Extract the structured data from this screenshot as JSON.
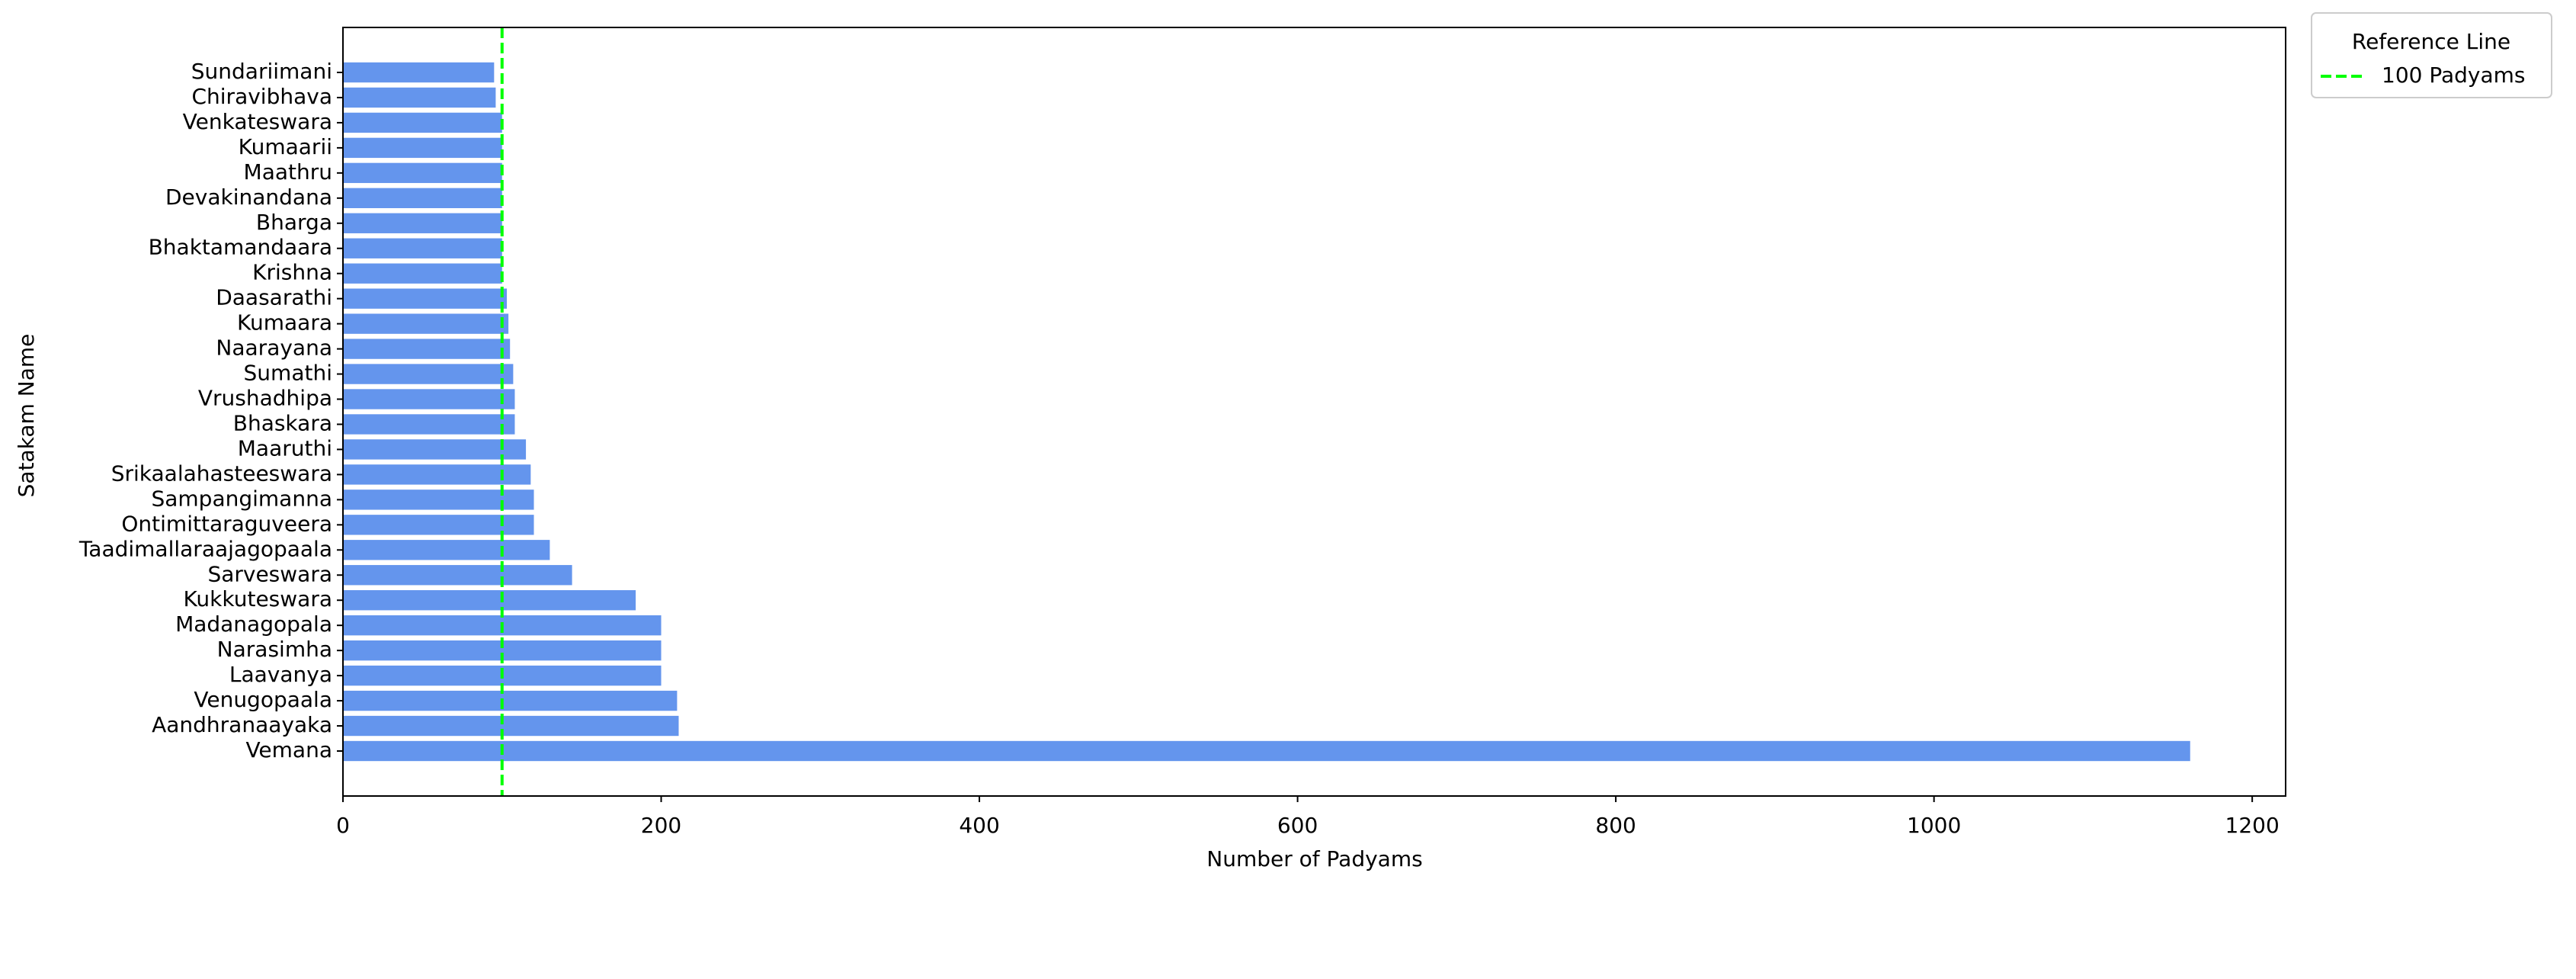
{
  "chart_data": {
    "type": "barh",
    "xlabel": "Number of Padyams",
    "ylabel": "Satakam Name",
    "categories": [
      "Vemana",
      "Aandhranaayaka",
      "Venugopaala",
      "Laavanya",
      "Narasimha",
      "Madanagopala",
      "Kukkuteswara",
      "Sarveswara",
      "Taadimallaraajagopaala",
      "Ontimittaraguveera",
      "Sampangimanna",
      "Srikaalahasteeswara",
      "Maaruthi",
      "Bhaskara",
      "Vrushadhipa",
      "Sumathi",
      "Naarayana",
      "Kumaara",
      "Daasarathi",
      "Krishna",
      "Bhaktamandaara",
      "Bharga",
      "Devakinandana",
      "Maathru",
      "Kumaarii",
      "Venkateswara",
      "Chiravibhava",
      "Sundariimani"
    ],
    "values": [
      1161,
      211,
      210,
      200,
      200,
      200,
      184,
      144,
      130,
      120,
      120,
      118,
      115,
      108,
      108,
      107,
      105,
      104,
      103,
      100,
      100,
      100,
      100,
      100,
      100,
      100,
      96,
      95
    ],
    "color": "#6495ed",
    "xlim": [
      0,
      1221
    ],
    "xticks": [
      0,
      200,
      400,
      600,
      800,
      1000,
      1200
    ],
    "reference_line": {
      "value": 100,
      "label": "100 Padyams",
      "color": "#00ff00"
    },
    "legend_title": "Reference Line",
    "legend_position": "outside upper right"
  }
}
